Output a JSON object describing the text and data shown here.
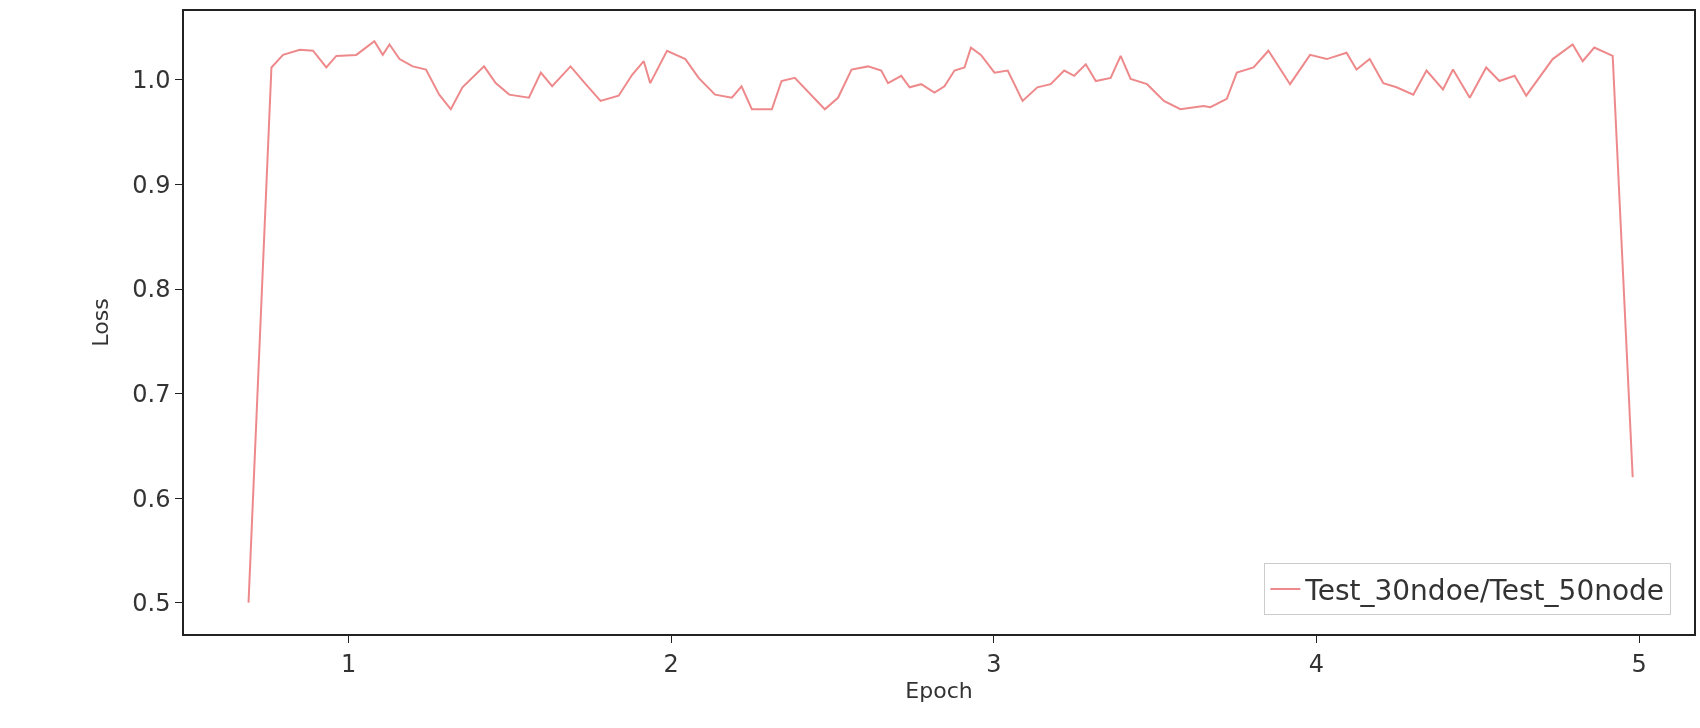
{
  "chart_data": {
    "type": "line",
    "xlabel": "Epoch",
    "ylabel": "Loss",
    "xlim": [
      0.49,
      5.17
    ],
    "xticks": [
      1,
      2,
      3,
      4,
      5
    ],
    "ylim": [
      0.47,
      1.066
    ],
    "yticks": [
      {
        "value": 0.5,
        "label": "0.5"
      },
      {
        "value": 0.6,
        "label": "0.6"
      },
      {
        "value": 0.7,
        "label": "0.7"
      },
      {
        "value": 0.8,
        "label": "0.8"
      },
      {
        "value": 0.9,
        "label": "0.9"
      },
      {
        "value": 1.0,
        "label": "1.0"
      }
    ],
    "legend": "bottom right",
    "series": [
      {
        "name": "Test_30ndoe/Test_50node",
        "color": "#ec7d7f",
        "x": [
          0.69,
          0.761,
          0.797,
          0.849,
          0.89,
          0.931,
          0.962,
          1.024,
          1.08,
          1.106,
          1.127,
          1.158,
          1.199,
          1.24,
          1.281,
          1.317,
          1.353,
          1.42,
          1.456,
          1.498,
          1.559,
          1.596,
          1.631,
          1.688,
          1.735,
          1.781,
          1.837,
          1.879,
          1.915,
          1.935,
          1.987,
          2.044,
          2.085,
          2.136,
          2.188,
          2.218,
          2.25,
          2.312,
          2.342,
          2.383,
          2.476,
          2.517,
          2.559,
          2.61,
          2.651,
          2.672,
          2.713,
          2.739,
          2.775,
          2.816,
          2.847,
          2.878,
          2.909,
          2.929,
          2.96,
          3.002,
          3.043,
          3.089,
          3.135,
          3.176,
          3.218,
          3.249,
          3.285,
          3.316,
          3.362,
          3.393,
          3.424,
          3.475,
          3.527,
          3.578,
          3.65,
          3.671,
          3.722,
          3.753,
          3.805,
          3.851,
          3.918,
          3.98,
          4.032,
          4.093,
          4.124,
          4.165,
          4.207,
          4.248,
          4.3,
          4.341,
          4.392,
          4.423,
          4.475,
          4.526,
          4.567,
          4.614,
          4.65,
          4.732,
          4.794,
          4.825,
          4.861,
          4.918,
          4.98
        ],
        "values": [
          0.5,
          1.012,
          1.024,
          1.029,
          1.028,
          1.012,
          1.023,
          1.024,
          1.037,
          1.024,
          1.034,
          1.02,
          1.013,
          1.01,
          0.986,
          0.972,
          0.993,
          1.013,
          0.997,
          0.986,
          0.983,
          1.007,
          0.994,
          1.013,
          0.996,
          0.98,
          0.985,
          1.005,
          1.018,
          0.997,
          1.028,
          1.02,
          1.002,
          0.986,
          0.983,
          0.994,
          0.972,
          0.972,
          0.999,
          1.002,
          0.972,
          0.983,
          1.01,
          1.013,
          1.009,
          0.997,
          1.004,
          0.993,
          0.996,
          0.988,
          0.994,
          1.009,
          1.012,
          1.031,
          1.024,
          1.007,
          1.009,
          0.98,
          0.993,
          0.996,
          1.009,
          1.004,
          1.015,
          0.999,
          1.002,
          1.023,
          1.001,
          0.996,
          0.98,
          0.972,
          0.975,
          0.974,
          0.982,
          1.007,
          1.012,
          1.028,
          0.996,
          1.024,
          1.02,
          1.026,
          1.01,
          1.02,
          0.997,
          0.993,
          0.986,
          1.009,
          0.991,
          1.01,
          0.983,
          1.012,
          0.999,
          1.004,
          0.985,
          1.02,
          1.034,
          1.018,
          1.031,
          1.023,
          0.62
        ]
      }
    ]
  }
}
